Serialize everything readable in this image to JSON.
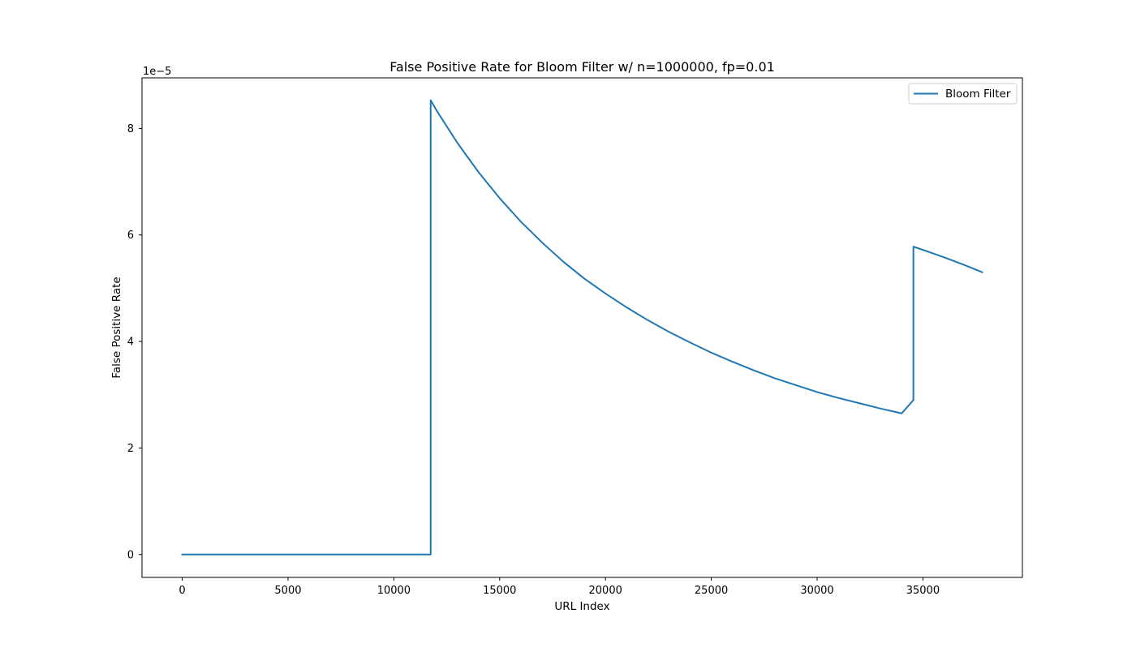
{
  "chart_data": {
    "type": "line",
    "title": "False Positive Rate for Bloom Filter w/ n=1000000, fp=0.01",
    "xlabel": "URL Index",
    "ylabel": "False Positive Rate",
    "y_offset_label": "1e−5",
    "y_scale": 1e-05,
    "xlim": [
      -1900,
      39700
    ],
    "ylim": [
      -0.43,
      8.95
    ],
    "xticks": [
      0,
      5000,
      10000,
      15000,
      20000,
      25000,
      30000,
      35000
    ],
    "xtick_labels": [
      "0",
      "5000",
      "10000",
      "15000",
      "20000",
      "25000",
      "30000",
      "35000"
    ],
    "yticks": [
      0,
      2,
      4,
      6,
      8
    ],
    "ytick_labels": [
      "0",
      "2",
      "4",
      "6",
      "8"
    ],
    "grid": false,
    "legend_position": "upper right",
    "series": [
      {
        "name": "Bloom Filter",
        "color": "#1f77b4",
        "x": [
          0,
          11740,
          11740,
          12000,
          13000,
          14000,
          15000,
          16000,
          17000,
          18000,
          19000,
          20000,
          21000,
          22000,
          23000,
          24000,
          25000,
          26000,
          27000,
          28000,
          29000,
          30000,
          31000,
          32000,
          33000,
          34000,
          34550,
          34550,
          35000,
          36000,
          37000,
          37800
        ],
        "y": [
          0,
          0,
          8.53,
          8.35,
          7.73,
          7.18,
          6.69,
          6.25,
          5.86,
          5.5,
          5.18,
          4.9,
          4.64,
          4.4,
          4.18,
          3.98,
          3.79,
          3.62,
          3.46,
          3.31,
          3.18,
          3.05,
          2.94,
          2.84,
          2.74,
          2.65,
          2.9,
          5.78,
          5.72,
          5.58,
          5.43,
          5.3
        ]
      }
    ]
  }
}
